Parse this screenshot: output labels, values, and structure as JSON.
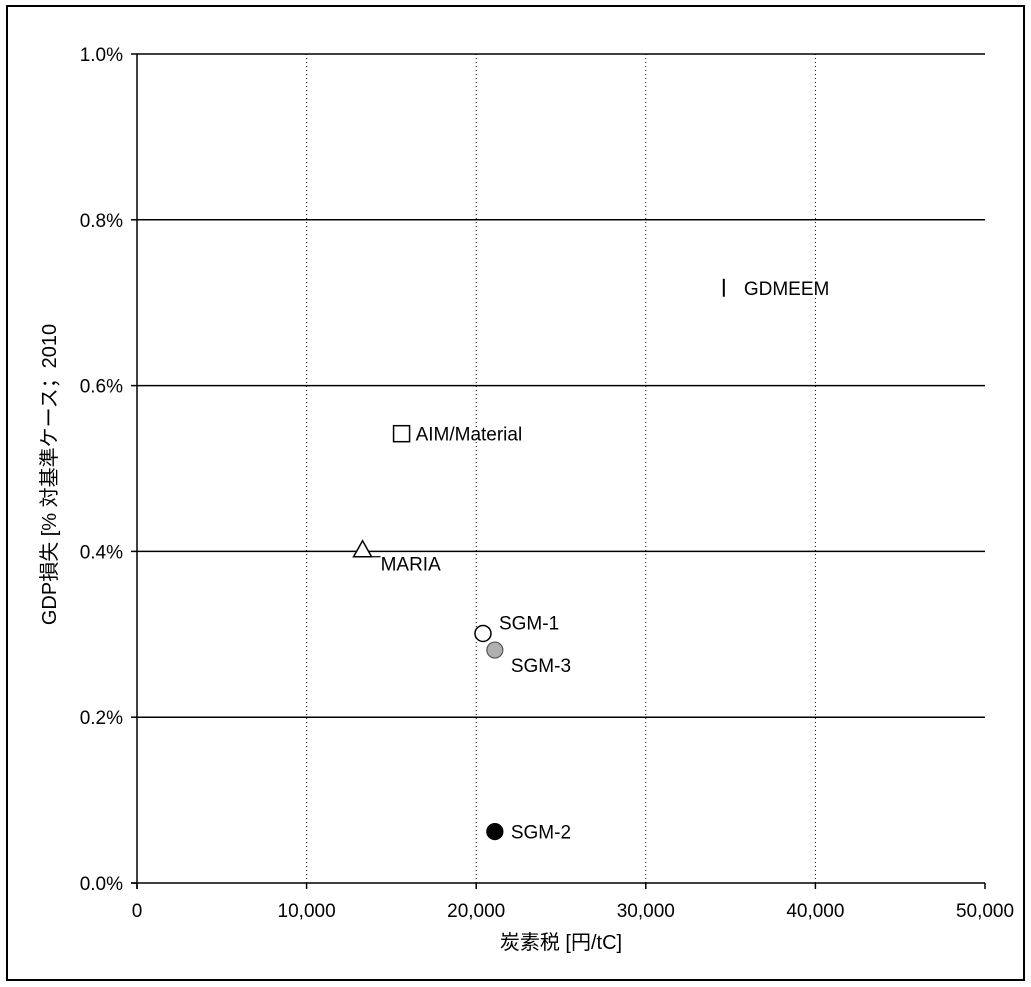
{
  "chart_data": {
    "type": "scatter",
    "xlabel": "炭素税 [円/tC]",
    "ylabel": "GDP損失 [% 対基準ケース；2010",
    "xlim": [
      0,
      50000
    ],
    "ylim": [
      0.0,
      0.01
    ],
    "x_ticks": [
      {
        "value": 0,
        "label": "0"
      },
      {
        "value": 10000,
        "label": "10,000"
      },
      {
        "value": 20000,
        "label": "20,000"
      },
      {
        "value": 30000,
        "label": "30,000"
      },
      {
        "value": 40000,
        "label": "40,000"
      },
      {
        "value": 50000,
        "label": "50,000"
      }
    ],
    "y_ticks": [
      {
        "value": 0.0,
        "label": "0.0%"
      },
      {
        "value": 0.002,
        "label": "0.2%"
      },
      {
        "value": 0.004,
        "label": "0.4%"
      },
      {
        "value": 0.006,
        "label": "0.6%"
      },
      {
        "value": 0.008,
        "label": "0.8%"
      },
      {
        "value": 0.01,
        "label": "1.0%"
      }
    ],
    "grid": {
      "y": "solid",
      "x": "dotted"
    },
    "points": [
      {
        "label": "GDMEEM",
        "x": 34600,
        "y": 0.00718,
        "marker": "bar",
        "color": "#000000",
        "label_pos": "right"
      },
      {
        "label": "AIM/Material",
        "x": 15600,
        "y": 0.00542,
        "marker": "square-open",
        "color": "#000000",
        "label_pos": "right"
      },
      {
        "label": "MARIA",
        "x": 13300,
        "y": 0.00402,
        "marker": "triangle-open",
        "color": "#000000",
        "label_pos": "below-right"
      },
      {
        "label": "SGM-1",
        "x": 20400,
        "y": 0.00301,
        "marker": "circle-open",
        "color": "#000000",
        "label_pos": "above-right"
      },
      {
        "label": "SGM-3",
        "x": 21100,
        "y": 0.00281,
        "marker": "circle-filled",
        "color": "#b0b0b0",
        "label_pos": "below-right"
      },
      {
        "label": "SGM-2",
        "x": 21100,
        "y": 0.00062,
        "marker": "circle-filled",
        "color": "#000000",
        "label_pos": "right"
      }
    ]
  }
}
